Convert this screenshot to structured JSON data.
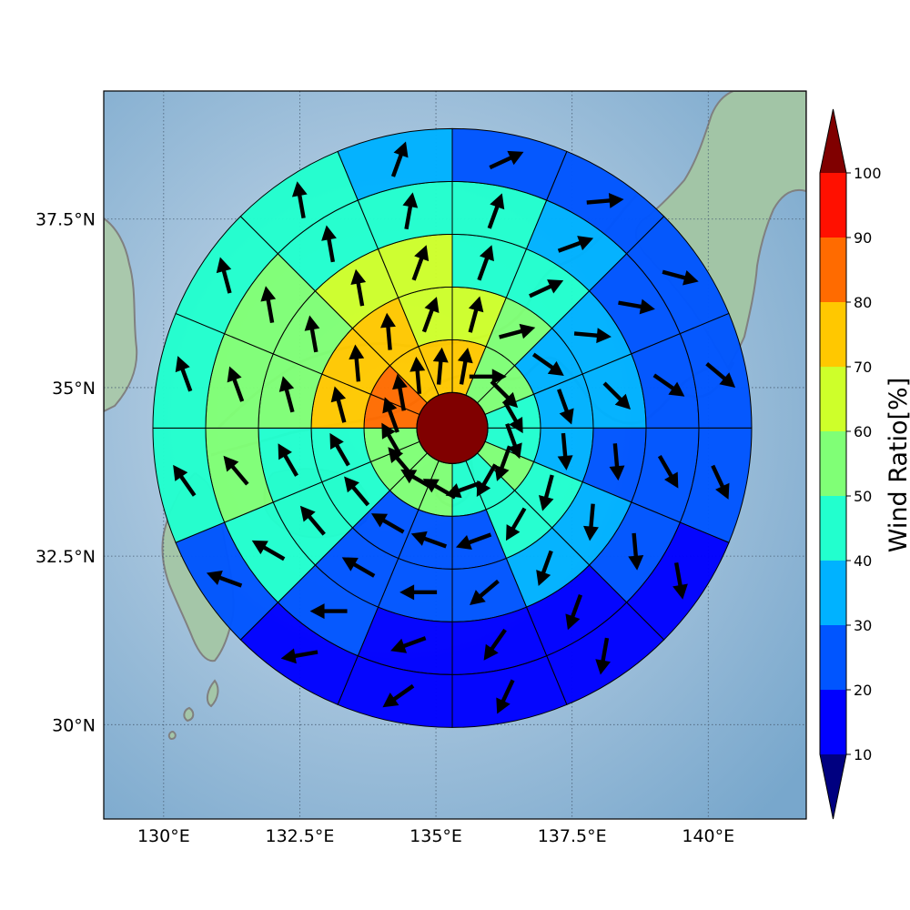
{
  "map": {
    "longitude_ticks": [
      {
        "lon": 130.0,
        "label": "130°E"
      },
      {
        "lon": 132.5,
        "label": "132.5°E"
      },
      {
        "lon": 135.0,
        "label": "135°E"
      },
      {
        "lon": 137.5,
        "label": "137.5°E"
      },
      {
        "lon": 140.0,
        "label": "140°E"
      }
    ],
    "latitude_ticks": [
      {
        "lat": 30.0,
        "label": "30°N"
      },
      {
        "lat": 32.5,
        "label": "32.5°N"
      },
      {
        "lat": 35.0,
        "label": "35°N"
      },
      {
        "lat": 37.5,
        "label": "37.5°N"
      }
    ],
    "extent": {
      "lon_min": 128.9,
      "lon_max": 141.8,
      "lat_min": 28.6,
      "lat_max": 39.4
    },
    "center": {
      "lon": 135.3,
      "lat": 34.4
    },
    "center_value": 100,
    "ring_count": 5,
    "sector_count": 16,
    "colors": {
      "ocean": "#8db8da",
      "land": "#9fc4a6",
      "coastline": "#808080",
      "grid": "#4a5f75",
      "arrow": "#000000",
      "center_disk": "#800000"
    },
    "sectors": [
      {
        "ring": 0,
        "values": [
          70,
          55,
          50,
          45,
          45,
          55,
          40,
          40,
          55,
          55,
          55,
          55,
          80,
          80,
          70,
          70
        ],
        "dirs": [
          10,
          90,
          135,
          150,
          160,
          200,
          210,
          250,
          300,
          300,
          320,
          330,
          340,
          350,
          355,
          5
        ]
      },
      {
        "ring": 1,
        "values": [
          65,
          50,
          35,
          35,
          35,
          40,
          40,
          20,
          20,
          20,
          45,
          45,
          75,
          75,
          75,
          65
        ],
        "dirs": [
          15,
          75,
          125,
          160,
          175,
          195,
          210,
          250,
          290,
          300,
          320,
          330,
          345,
          355,
          355,
          20
        ]
      },
      {
        "ring": 2,
        "values": [
          45,
          45,
          35,
          30,
          25,
          35,
          30,
          20,
          20,
          20,
          40,
          45,
          55,
          55,
          65,
          60
        ],
        "dirs": [
          20,
          65,
          95,
          135,
          175,
          185,
          200,
          230,
          270,
          300,
          320,
          330,
          345,
          350,
          350,
          20
        ]
      },
      {
        "ring": 3,
        "values": [
          45,
          35,
          20,
          20,
          20,
          20,
          15,
          15,
          15,
          20,
          40,
          50,
          50,
          55,
          45,
          45
        ],
        "dirs": [
          20,
          70,
          100,
          125,
          150,
          175,
          200,
          215,
          250,
          270,
          300,
          320,
          340,
          350,
          350,
          10
        ]
      },
      {
        "ring": 4,
        "values": [
          20,
          20,
          20,
          20,
          20,
          10,
          10,
          10,
          10,
          10,
          20,
          40,
          45,
          45,
          45,
          30
        ],
        "dirs": [
          65,
          85,
          105,
          130,
          155,
          170,
          190,
          205,
          235,
          260,
          290,
          325,
          340,
          345,
          350,
          20
        ]
      }
    ]
  },
  "colorbar": {
    "title": "Wind Ratio[%]",
    "ticks": [
      "10",
      "20",
      "30",
      "40",
      "50",
      "60",
      "70",
      "80",
      "90",
      "100"
    ],
    "bins": [
      {
        "from": 10,
        "to": 20,
        "color": "#0000ff"
      },
      {
        "from": 20,
        "to": 30,
        "color": "#0055ff"
      },
      {
        "from": 30,
        "to": 40,
        "color": "#00b2ff"
      },
      {
        "from": 40,
        "to": 50,
        "color": "#22ffce"
      },
      {
        "from": 50,
        "to": 60,
        "color": "#80ff76"
      },
      {
        "from": 60,
        "to": 70,
        "color": "#ceff2a"
      },
      {
        "from": 70,
        "to": 80,
        "color": "#ffc800"
      },
      {
        "from": 80,
        "to": 90,
        "color": "#ff6b00"
      },
      {
        "from": 90,
        "to": 100,
        "color": "#ff1000"
      }
    ],
    "under_color": "#000080",
    "over_color": "#800000"
  }
}
